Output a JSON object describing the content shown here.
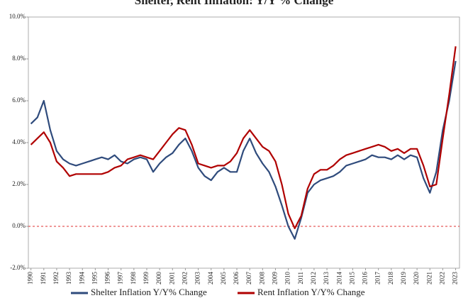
{
  "chart_data": {
    "type": "line",
    "title": "Shelter, Rent Inflation: Y/Y % Change",
    "x": [
      1990,
      1990.5,
      1991,
      1991.5,
      1992,
      1992.5,
      1993,
      1993.5,
      1994,
      1994.5,
      1995,
      1995.5,
      1996,
      1996.5,
      1997,
      1997.5,
      1998,
      1998.5,
      1999,
      1999.5,
      2000,
      2000.5,
      2001,
      2001.5,
      2002,
      2002.5,
      2003,
      2003.5,
      2004,
      2004.5,
      2005,
      2005.5,
      2006,
      2006.5,
      2007,
      2007.5,
      2008,
      2008.5,
      2009,
      2009.5,
      2010,
      2010.5,
      2011,
      2011.5,
      2012,
      2012.5,
      2013,
      2013.5,
      2014,
      2014.5,
      2015,
      2015.5,
      2016,
      2016.5,
      2017,
      2017.5,
      2018,
      2018.5,
      2019,
      2019.5,
      2020,
      2020.5,
      2021,
      2021.5,
      2022,
      2022.5,
      2023
    ],
    "series": [
      {
        "name": "Shelter Inflation Y/Y% Change",
        "color": "#2f4b7c",
        "values": [
          4.9,
          5.2,
          6.0,
          4.6,
          3.6,
          3.2,
          3.0,
          2.9,
          3.0,
          3.1,
          3.2,
          3.3,
          3.2,
          3.4,
          3.1,
          3.0,
          3.2,
          3.3,
          3.2,
          2.6,
          3.0,
          3.3,
          3.5,
          3.9,
          4.2,
          3.6,
          2.8,
          2.4,
          2.2,
          2.6,
          2.8,
          2.6,
          2.6,
          3.6,
          4.2,
          3.5,
          3.0,
          2.6,
          1.9,
          1.0,
          0.0,
          -0.6,
          0.4,
          1.6,
          2.0,
          2.2,
          2.3,
          2.4,
          2.6,
          2.9,
          3.0,
          3.1,
          3.2,
          3.4,
          3.3,
          3.3,
          3.2,
          3.4,
          3.2,
          3.4,
          3.3,
          2.3,
          1.6,
          2.6,
          4.6,
          6.0,
          7.9
        ]
      },
      {
        "name": "Rent Inflation Y/Y% Change",
        "color": "#b00000",
        "values": [
          3.9,
          4.2,
          4.5,
          4.0,
          3.1,
          2.8,
          2.4,
          2.5,
          2.5,
          2.5,
          2.5,
          2.5,
          2.6,
          2.8,
          2.9,
          3.2,
          3.3,
          3.4,
          3.3,
          3.2,
          3.6,
          4.0,
          4.4,
          4.7,
          4.6,
          3.9,
          3.0,
          2.9,
          2.8,
          2.9,
          2.9,
          3.1,
          3.5,
          4.2,
          4.6,
          4.2,
          3.8,
          3.6,
          3.1,
          2.0,
          0.6,
          -0.1,
          0.5,
          1.8,
          2.5,
          2.7,
          2.7,
          2.9,
          3.2,
          3.4,
          3.5,
          3.6,
          3.7,
          3.8,
          3.9,
          3.8,
          3.6,
          3.7,
          3.5,
          3.7,
          3.7,
          2.9,
          1.9,
          2.0,
          4.2,
          6.3,
          8.6
        ]
      }
    ],
    "xlim": [
      1989.8,
      2023.3
    ],
    "xticks": [
      1990,
      1991,
      1992,
      1993,
      1994,
      1995,
      1996,
      1997,
      1998,
      1999,
      2000,
      2001,
      2002,
      2003,
      2004,
      2005,
      2006,
      2007,
      2008,
      2009,
      2010,
      2011,
      2012,
      2013,
      2014,
      2015,
      2016,
      2017,
      2018,
      2019,
      2020,
      2021,
      2022,
      2023
    ],
    "ylim": [
      -2,
      10
    ],
    "yticks": [
      {
        "value": -2,
        "label": "-2.0%"
      },
      {
        "value": 0,
        "label": "0.0%"
      },
      {
        "value": 2,
        "label": "2.0%"
      },
      {
        "value": 4,
        "label": "4.0%"
      },
      {
        "value": 6,
        "label": "6.0%"
      },
      {
        "value": 8,
        "label": "8.0%"
      },
      {
        "value": 10,
        "label": "10.0%"
      }
    ],
    "reference_line": {
      "value": 0,
      "color": "#e03030"
    },
    "legend": "bottom"
  }
}
